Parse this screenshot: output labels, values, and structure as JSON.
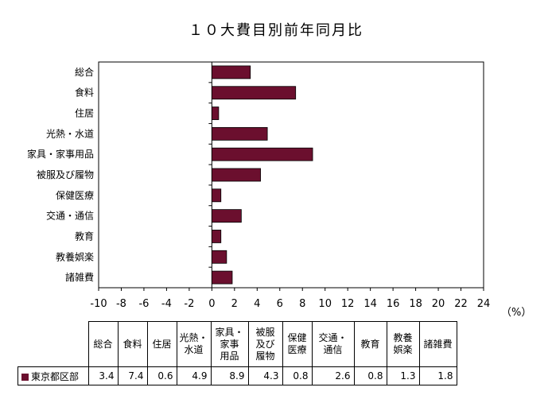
{
  "title": "１０大費目別前年同月比",
  "unit_label": "（%）",
  "chart_data": {
    "type": "bar",
    "orientation": "horizontal",
    "title": "１０大費目別前年同月比",
    "categories": [
      "総合",
      "食料",
      "住居",
      "光熱・水道",
      "家具・家事用品",
      "被服及び履物",
      "保健医療",
      "交通・通信",
      "教育",
      "教養娯楽",
      "諸雑費"
    ],
    "series": [
      {
        "name": "東京都区部",
        "color": "#6b0f2e",
        "values": [
          3.4,
          7.4,
          0.6,
          4.9,
          8.9,
          4.3,
          0.8,
          2.6,
          0.8,
          1.3,
          1.8
        ]
      }
    ],
    "xlim": [
      -10,
      24
    ],
    "xticks": [
      -10,
      -8,
      -6,
      -4,
      -2,
      0,
      2,
      4,
      6,
      8,
      10,
      12,
      14,
      16,
      18,
      20,
      22,
      24
    ],
    "grid": false,
    "legend": "none"
  },
  "table": {
    "headers": [
      [
        "総合"
      ],
      [
        "食料"
      ],
      [
        "住居"
      ],
      [
        "光熱・",
        "水道"
      ],
      [
        "家具・",
        "家事",
        "用品"
      ],
      [
        "被服",
        "及び",
        "履物"
      ],
      [
        "保健",
        "医療"
      ],
      [
        "交通・",
        "通信"
      ],
      [
        "教育"
      ],
      [
        "教養",
        "娯楽"
      ],
      [
        "諸雑費"
      ]
    ],
    "row_label": "東京都区部",
    "row_values": [
      "3.4",
      "7.4",
      "0.6",
      "4.9",
      "8.9",
      "4.3",
      "0.8",
      "2.6",
      "0.8",
      "1.3",
      "1.8"
    ]
  }
}
